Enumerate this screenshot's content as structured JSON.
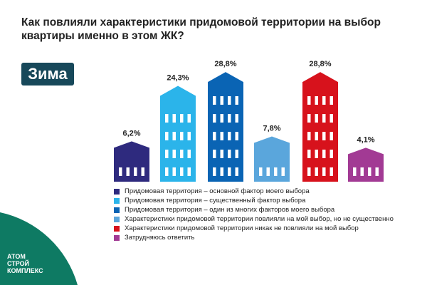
{
  "title": "Как повлияли характеристики придомовой территории на выбор квартиры именно в этом ЖК?",
  "badge": "Зима",
  "logo": [
    "АТОМ",
    "СТРОЙ",
    "КОМПЛЕКС"
  ],
  "chart_data": {
    "type": "bar",
    "categories": [
      "Придомовая территория – основной фактор моего выбора",
      "Придомовая территория – существенный фактор выбора",
      "Придомовая территория – один из многих факторов моего выбора",
      "Характеристики придомовой территории повлияли на мой выбор, но не существенно",
      "Характеристики придомовой территории никак не повлияли на мой выбор",
      "Затрудняюсь ответить"
    ],
    "values": [
      6.2,
      24.3,
      28.8,
      7.8,
      28.8,
      4.1
    ],
    "labels": [
      "6,2%",
      "24,3%",
      "28,8%",
      "7,8%",
      "28,8%",
      "4,1%"
    ],
    "colors": [
      "#2e2a7e",
      "#2bb4ea",
      "#0a64b4",
      "#5aa6dc",
      "#d7121c",
      "#a23a94"
    ],
    "legend_position": "bottom"
  },
  "colors": {
    "badge": "#17485a",
    "logo_bg": "#0e7a63"
  }
}
